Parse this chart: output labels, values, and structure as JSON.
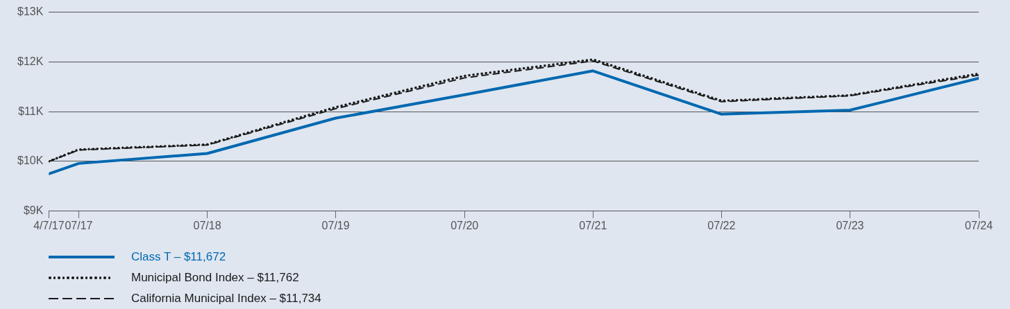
{
  "chart_data": {
    "type": "line",
    "x": [
      "2017-04-07",
      "2017-07",
      "2018-07",
      "2019-07",
      "2020-07",
      "2021-07",
      "2022-07",
      "2023-07",
      "2024-07"
    ],
    "series": [
      {
        "name": "Class T – $11,672",
        "color": "#0068b0",
        "values": [
          9750,
          9960,
          10160,
          10870,
          11340,
          11820,
          10950,
          11030,
          11672
        ],
        "line_style": "solid"
      },
      {
        "name": "Municipal Bond Index – $11,762",
        "color": "#1a1a1a",
        "values": [
          10000,
          10240,
          10340,
          11090,
          11720,
          12050,
          11220,
          11330,
          11762
        ],
        "line_style": "dotted"
      },
      {
        "name": "California Municipal Index – $11,734",
        "color": "#1a1a1a",
        "values": [
          10000,
          10230,
          10330,
          11060,
          11680,
          12020,
          11200,
          11320,
          11734
        ],
        "line_style": "dashed"
      }
    ],
    "xlim": [
      "2017-04-07",
      "2024-07"
    ],
    "xticks": [
      {
        "value": "2017-04-07",
        "label": "4/7/17"
      },
      {
        "value": "2017-07",
        "label": "07/17"
      },
      {
        "value": "2018-07",
        "label": "07/18"
      },
      {
        "value": "2019-07",
        "label": "07/19"
      },
      {
        "value": "2020-07",
        "label": "07/20"
      },
      {
        "value": "2021-07",
        "label": "07/21"
      },
      {
        "value": "2022-07",
        "label": "07/22"
      },
      {
        "value": "2023-07",
        "label": "07/23"
      },
      {
        "value": "2024-07",
        "label": "07/24"
      }
    ],
    "ylim": [
      9000,
      13000
    ],
    "yticks": [
      {
        "value": 9000,
        "label": "$9K"
      },
      {
        "value": 10000,
        "label": "$10K"
      },
      {
        "value": 11000,
        "label": "$11K"
      },
      {
        "value": 12000,
        "label": "$12K"
      },
      {
        "value": 13000,
        "label": "$13K"
      }
    ],
    "grid": "y",
    "legend": "bottom left",
    "marker": "none"
  }
}
